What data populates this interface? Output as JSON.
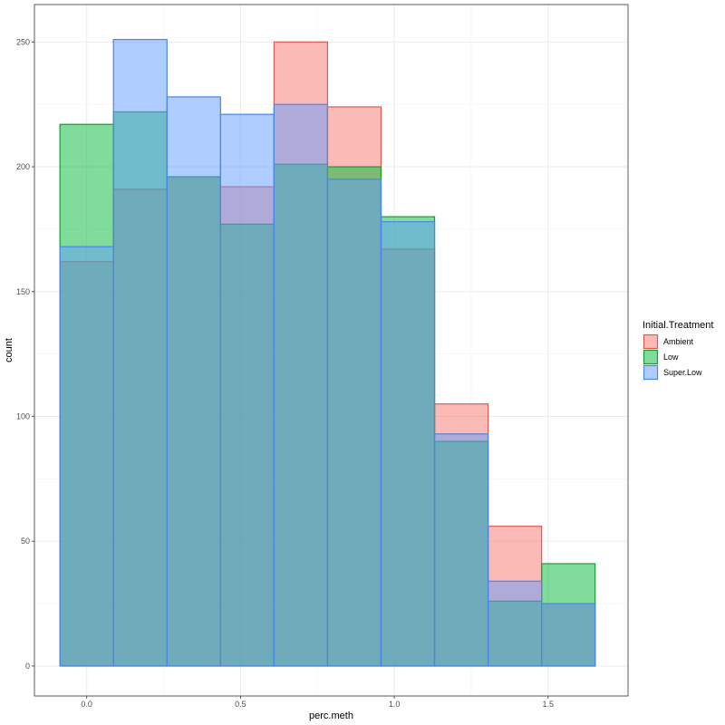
{
  "chart_data": {
    "type": "histogram",
    "title": "",
    "xlabel": "perc.meth",
    "ylabel": "count",
    "xlim": [
      -0.17,
      1.76
    ],
    "ylim": [
      -12,
      265
    ],
    "xticks": [
      0.0,
      0.5,
      1.0,
      1.5
    ],
    "xtick_labels": [
      "0.0",
      "0.5",
      "1.0",
      "1.5"
    ],
    "yticks": [
      0,
      50,
      100,
      150,
      200,
      250
    ],
    "ytick_labels": [
      "0",
      "50",
      "100",
      "150",
      "200",
      "250"
    ],
    "bin_edges": [
      -0.087,
      0.087,
      0.261,
      0.435,
      0.609,
      0.783,
      0.957,
      1.131,
      1.305,
      1.479,
      1.653
    ],
    "grid": true,
    "legend": {
      "title": "Initial.Treatment",
      "placement": "right"
    },
    "series": [
      {
        "name": "Ambient",
        "fill": "#F8766D",
        "stroke": "#E05A52",
        "values": [
          162,
          191,
          196,
          192,
          250,
          224,
          167,
          105,
          56,
          25
        ]
      },
      {
        "name": "Low",
        "fill": "#00BA38",
        "stroke": "#1E9A2E",
        "values": [
          217,
          222,
          196,
          177,
          201,
          200,
          180,
          90,
          26,
          41
        ]
      },
      {
        "name": "Super.Low",
        "fill": "#619CFF",
        "stroke": "#4A86E8",
        "values": [
          168,
          251,
          228,
          221,
          225,
          195,
          178,
          93,
          34,
          25
        ]
      }
    ]
  }
}
